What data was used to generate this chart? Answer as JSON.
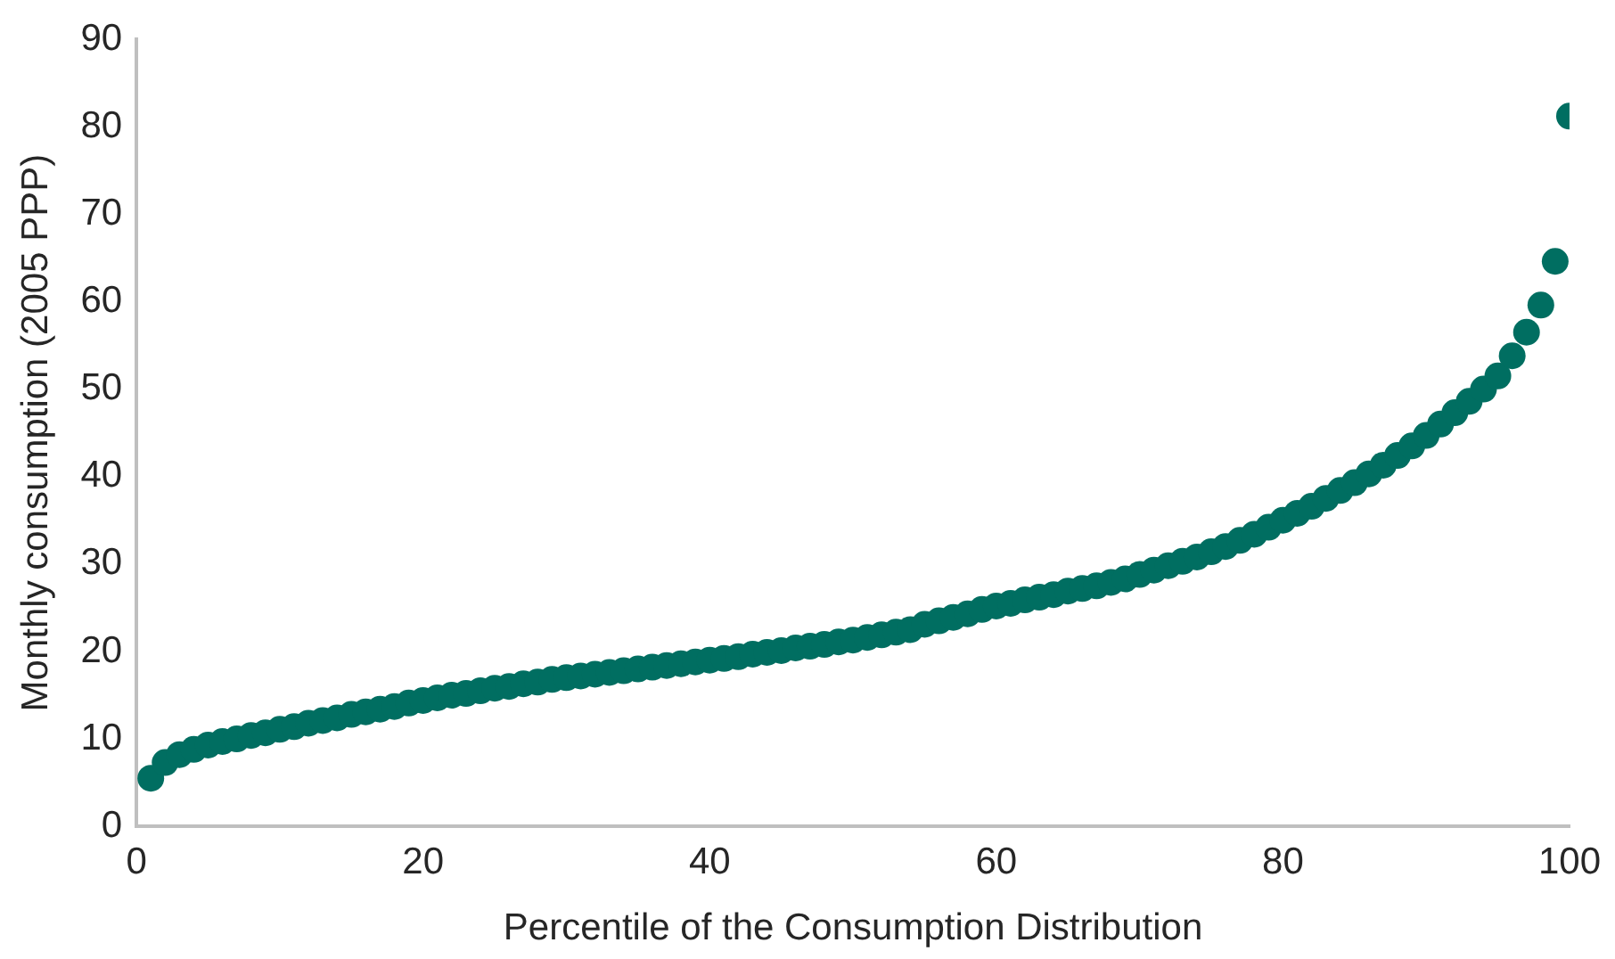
{
  "chart_data": {
    "type": "scatter",
    "xlabel": "Percentile of the Consumption Distribution",
    "ylabel": "Monthly consumption (2005 PPP)",
    "x": [
      1,
      2,
      3,
      4,
      5,
      6,
      7,
      8,
      9,
      10,
      11,
      12,
      13,
      14,
      15,
      16,
      17,
      18,
      19,
      20,
      21,
      22,
      23,
      24,
      25,
      26,
      27,
      28,
      29,
      30,
      31,
      32,
      33,
      34,
      35,
      36,
      37,
      38,
      39,
      40,
      41,
      42,
      43,
      44,
      45,
      46,
      47,
      48,
      49,
      50,
      51,
      52,
      53,
      54,
      55,
      56,
      57,
      58,
      59,
      60,
      61,
      62,
      63,
      64,
      65,
      66,
      67,
      68,
      69,
      70,
      71,
      72,
      73,
      74,
      75,
      76,
      77,
      78,
      79,
      80,
      81,
      82,
      83,
      84,
      85,
      86,
      87,
      88,
      89,
      90,
      91,
      92,
      93,
      94,
      95,
      96,
      97,
      98,
      99,
      100
    ],
    "series": [
      {
        "color": "#006e61",
        "values": [
          5.5,
          7.3,
          8.2,
          8.8,
          9.3,
          9.7,
          10.0,
          10.4,
          10.7,
          11.1,
          11.4,
          11.8,
          12.1,
          12.4,
          12.8,
          13.1,
          13.4,
          13.7,
          14.1,
          14.4,
          14.7,
          15.0,
          15.2,
          15.5,
          15.8,
          16.0,
          16.3,
          16.5,
          16.8,
          17.0,
          17.2,
          17.4,
          17.6,
          17.8,
          18.0,
          18.2,
          18.4,
          18.6,
          18.8,
          19.0,
          19.2,
          19.4,
          19.7,
          19.9,
          20.1,
          20.4,
          20.6,
          20.8,
          21.1,
          21.3,
          21.6,
          21.9,
          22.2,
          22.5,
          23.1,
          23.5,
          23.9,
          24.3,
          24.8,
          25.2,
          25.5,
          25.9,
          26.2,
          26.5,
          26.9,
          27.2,
          27.5,
          27.9,
          28.3,
          28.8,
          29.3,
          29.8,
          30.3,
          30.8,
          31.4,
          32.0,
          32.7,
          33.4,
          34.2,
          35.0,
          35.8,
          36.6,
          37.5,
          38.4,
          39.3,
          40.3,
          41.3,
          42.4,
          43.5,
          44.7,
          46.0,
          47.3,
          48.6,
          50.0,
          51.5,
          53.8,
          56.5,
          59.6,
          64.6,
          81.2
        ]
      }
    ],
    "xlim": [
      0,
      100
    ],
    "xticks": [
      0,
      20,
      40,
      60,
      80,
      100
    ],
    "ylim": [
      0,
      90
    ],
    "yticks": [
      0,
      10,
      20,
      30,
      40,
      50,
      60,
      70,
      80,
      90
    ],
    "grid": false,
    "legend": false,
    "marker": "circle"
  }
}
